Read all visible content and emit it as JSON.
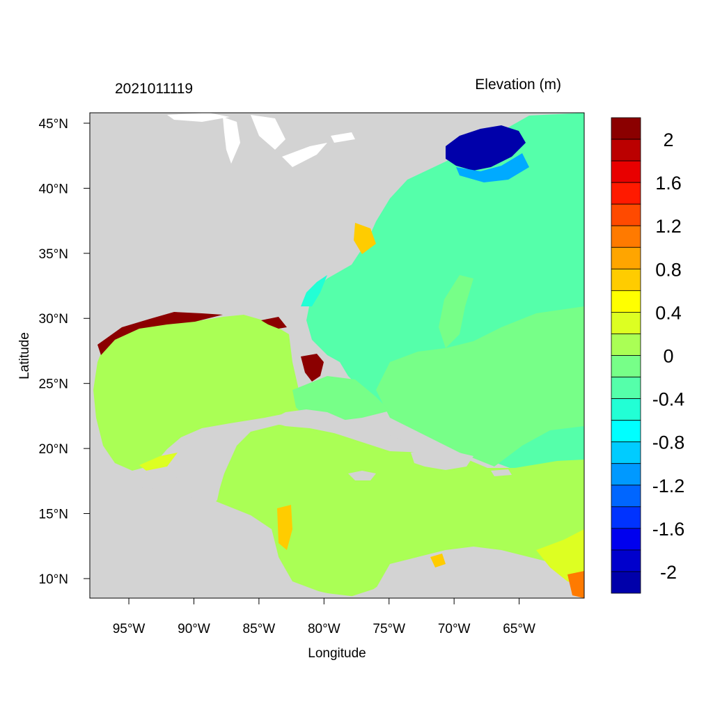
{
  "timestamp": "2021011119",
  "field_title": "Elevation (m)",
  "x_axis": {
    "label": "Longitude",
    "range": [
      -98,
      -60
    ],
    "ticks": [
      {
        "value": -95,
        "label": "95°W"
      },
      {
        "value": -90,
        "label": "90°W"
      },
      {
        "value": -85,
        "label": "85°W"
      },
      {
        "value": -80,
        "label": "80°W"
      },
      {
        "value": -75,
        "label": "75°W"
      },
      {
        "value": -70,
        "label": "70°W"
      },
      {
        "value": -65,
        "label": "65°W"
      }
    ]
  },
  "y_axis": {
    "label": "Latitude",
    "range": [
      8.5,
      45.8
    ],
    "ticks": [
      {
        "value": 45,
        "label": "45°N"
      },
      {
        "value": 40,
        "label": "40°N"
      },
      {
        "value": 35,
        "label": "35°N"
      },
      {
        "value": 30,
        "label": "30°N"
      },
      {
        "value": 25,
        "label": "25°N"
      },
      {
        "value": 20,
        "label": "20°N"
      },
      {
        "value": 15,
        "label": "15°N"
      },
      {
        "value": 10,
        "label": "10°N"
      }
    ]
  },
  "colorbar": {
    "colors": [
      "#8b0000",
      "#bb0000",
      "#e80000",
      "#ff1a00",
      "#ff4a00",
      "#ff7a00",
      "#ffa500",
      "#ffcc00",
      "#ffff00",
      "#ddff22",
      "#aaff55",
      "#77ff88",
      "#55ffaa",
      "#22ffd5",
      "#00ffff",
      "#00ccff",
      "#0099ff",
      "#0066ff",
      "#0033ff",
      "#0000ee",
      "#0000cc",
      "#0000aa"
    ],
    "labels": [
      "2",
      "1.6",
      "1.2",
      "0.8",
      "0.4",
      "0",
      "-0.4",
      "-0.8",
      "-1.2",
      "-1.6",
      "-2"
    ]
  },
  "colors": {
    "land": "#d3d3d3",
    "gulf_caribbean": "#aaff55",
    "atlantic_main": "#55ffaa",
    "atlantic_secondary": "#77ff88",
    "surge_positive": "#8b0000",
    "surge_negative": "#0000aa"
  }
}
